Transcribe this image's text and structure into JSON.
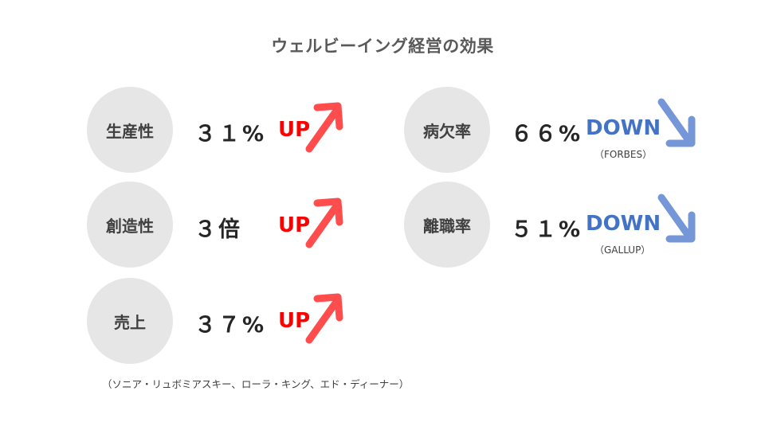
{
  "title": "ウェルビーイング経営の効果",
  "items": [
    {
      "label": "生産性",
      "value": "３１%",
      "direction": "UP"
    },
    {
      "label": "創造性",
      "value": "３倍",
      "direction": "UP"
    },
    {
      "label": "売上",
      "value": "３７%",
      "direction": "UP"
    },
    {
      "label": "病欠率",
      "value": "６６%",
      "direction": "DOWN",
      "source": "（FORBES）"
    },
    {
      "label": "離職率",
      "value": "５１%",
      "direction": "DOWN",
      "source": "（GALLUP）"
    }
  ],
  "footnote": "（ソニア・リュボミアスキー、ローラ・キング、エド・ディーナー）",
  "colors": {
    "up": "#ff0000",
    "up_arrow": "#ff4d4d",
    "down": "#4472c4",
    "down_arrow": "#7597d8",
    "circle": "#e6e6e6"
  },
  "icons": {
    "up": "arrow-up-right-icon",
    "down": "arrow-down-right-icon"
  }
}
